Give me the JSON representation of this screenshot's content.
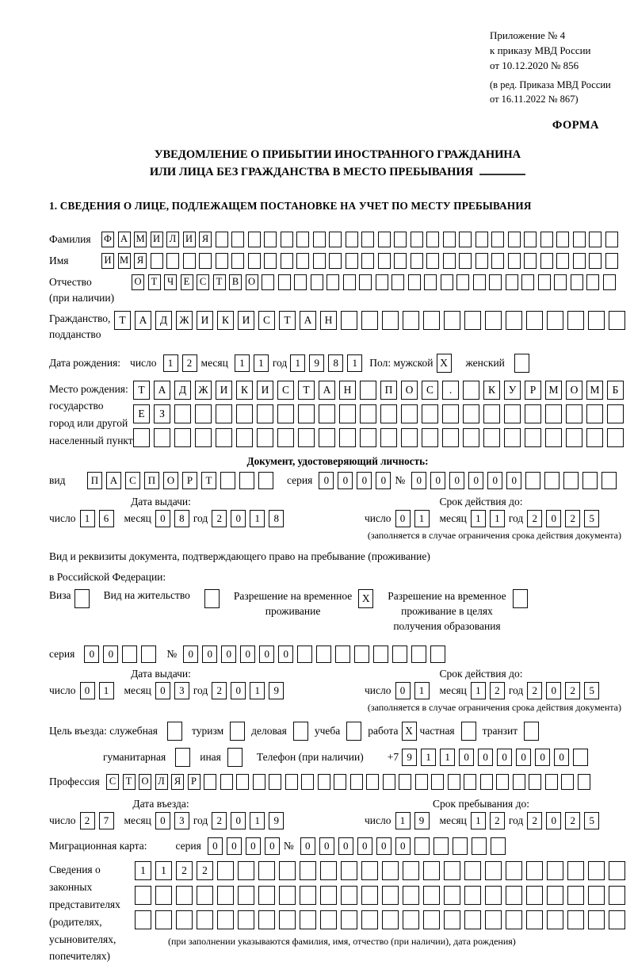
{
  "header": {
    "appendix": [
      "Приложение № 4",
      "к приказу МВД России",
      "от 10.12.2020 № 856"
    ],
    "edition": [
      "(в ред. Приказа МВД России",
      "от 16.11.2022 № 867)"
    ],
    "form_label": "ФОРМА"
  },
  "title": {
    "line1": "УВЕДОМЛЕНИЕ О ПРИБЫТИИ ИНОСТРАННОГО ГРАЖДАНИНА",
    "line2": "ИЛИ ЛИЦА БЕЗ ГРАЖДАНСТВА В МЕСТО ПРЕБЫВАНИЯ"
  },
  "section1_heading": "1. СВЕДЕНИЯ О ЛИЦЕ, ПОДЛЕЖАЩЕМ ПОСТАНОВКЕ НА УЧЕТ ПО МЕСТУ ПРЕБЫВАНИЯ",
  "labels": {
    "surname": "Фамилия",
    "given_name": "Имя",
    "patronymic": "Отчество",
    "patronymic_note": "(при наличии)",
    "citizenship1": "Гражданство,",
    "citizenship2": "подданство",
    "birthdate": "Дата рождения:",
    "day": "число",
    "month": "месяц",
    "year": "год",
    "sex_male": "Пол: мужской",
    "sex_female": "женский",
    "birthplace": [
      "Место рождения:",
      "государство",
      "город или другой",
      "населенный пункт"
    ],
    "identity_doc_heading": "Документ, удостоверяющий личность:",
    "vid": "вид",
    "series": "серия",
    "number": "№",
    "issue_date": "Дата выдачи:",
    "valid_until": "Срок действия до:",
    "restriction_note": "(заполняется в случае ограничения срока действия документа)",
    "right_doc_line1": "Вид и реквизиты документа, подтверждающего право на пребывание (проживание)",
    "right_doc_line2": "в Российской Федерации:",
    "visa": "Виза",
    "residence_permit": "Вид на жительство",
    "temp_residence": [
      "Разрешение на временное",
      "проживание"
    ],
    "temp_residence_edu": [
      "Разрешение на временное",
      "проживание в целях",
      "получения образования"
    ],
    "purpose": "Цель въезда: служебная",
    "tourism": "туризм",
    "business": "деловая",
    "study": "учеба",
    "work": "работа",
    "private": "частная",
    "transit": "транзит",
    "humanitarian": "гуманитарная",
    "other": "иная",
    "phone": "Телефон (при наличии)",
    "phone_prefix": "+7",
    "profession": "Профессия",
    "entry_date": "Дата въезда:",
    "stay_until": "Срок пребывания до:",
    "migration_card": "Миграционная карта:",
    "guardians": [
      "Сведения о",
      "законных",
      "представителях",
      "(родителях,",
      "усыновителях,",
      "попечителях)"
    ],
    "guardians_note": "(при заполнении указываются фамилия, имя, отчество (при наличии), дата рождения)"
  },
  "fields": {
    "surname": {
      "count": 32,
      "value": "ФАМИЛИЯ"
    },
    "given_name": {
      "count": 32,
      "value": "ИМЯ"
    },
    "patronymic": {
      "count": 30,
      "value": "ОТЧЕСТВО"
    },
    "citizenship": {
      "count": 25,
      "value": "ТАДЖИКИСТАН"
    },
    "birth_day": {
      "count": 2,
      "value": "12"
    },
    "birth_month": {
      "count": 2,
      "value": "11"
    },
    "birth_year": {
      "count": 4,
      "value": "1981"
    },
    "sex_male_box": {
      "count": 1,
      "value": "X"
    },
    "sex_female_box": {
      "count": 1,
      "value": ""
    },
    "birthplace_row1": {
      "count": 24,
      "value": "ТАДЖИКИСТАН ПОС. КУРМОМБ"
    },
    "birthplace_row2": {
      "count": 24,
      "value": "ЕЗ"
    },
    "birthplace_row3": {
      "count": 24,
      "value": ""
    },
    "doc_type": {
      "count": 10,
      "value": "ПАСПОРТ"
    },
    "doc_series": {
      "count": 4,
      "value": "0000"
    },
    "doc_number": {
      "count": 11,
      "value": "000000"
    },
    "doc_issue_day": {
      "count": 2,
      "value": "16"
    },
    "doc_issue_month": {
      "count": 2,
      "value": "08"
    },
    "doc_issue_year": {
      "count": 4,
      "value": "2018"
    },
    "doc_valid_day": {
      "count": 2,
      "value": "01"
    },
    "doc_valid_month": {
      "count": 2,
      "value": "11"
    },
    "doc_valid_year": {
      "count": 4,
      "value": "2025"
    },
    "visa_box": {
      "count": 1,
      "value": ""
    },
    "residence_permit_box": {
      "count": 1,
      "value": ""
    },
    "temp_residence_box": {
      "count": 1,
      "value": "X"
    },
    "temp_residence_edu_box": {
      "count": 1,
      "value": ""
    },
    "permit_series": {
      "count": 4,
      "value": "00"
    },
    "permit_number": {
      "count": 14,
      "value": "000000"
    },
    "permit_issue_day": {
      "count": 2,
      "value": "01"
    },
    "permit_issue_month": {
      "count": 2,
      "value": "03"
    },
    "permit_issue_year": {
      "count": 4,
      "value": "2019"
    },
    "permit_valid_day": {
      "count": 2,
      "value": "01"
    },
    "permit_valid_month": {
      "count": 2,
      "value": "12"
    },
    "permit_valid_year": {
      "count": 4,
      "value": "2025"
    },
    "purpose_official_box": {
      "count": 1,
      "value": ""
    },
    "purpose_tourism_box": {
      "count": 1,
      "value": ""
    },
    "purpose_business_box": {
      "count": 1,
      "value": ""
    },
    "purpose_study_box": {
      "count": 1,
      "value": ""
    },
    "purpose_work_box": {
      "count": 1,
      "value": "X"
    },
    "purpose_private_box": {
      "count": 1,
      "value": ""
    },
    "purpose_transit_box": {
      "count": 1,
      "value": ""
    },
    "purpose_humanitarian_box": {
      "count": 1,
      "value": ""
    },
    "purpose_other_box": {
      "count": 1,
      "value": ""
    },
    "phone": {
      "count": 10,
      "value": "911000000"
    },
    "profession": {
      "count": 30,
      "value": "СТОЛЯР"
    },
    "entry_day": {
      "count": 2,
      "value": "27"
    },
    "entry_month": {
      "count": 2,
      "value": "03"
    },
    "entry_year": {
      "count": 4,
      "value": "2019"
    },
    "stay_day": {
      "count": 2,
      "value": "19"
    },
    "stay_month": {
      "count": 2,
      "value": "12"
    },
    "stay_year": {
      "count": 4,
      "value": "2025"
    },
    "migration_series": {
      "count": 4,
      "value": "0000"
    },
    "migration_number": {
      "count": 11,
      "value": "000000"
    },
    "guardians_row1": {
      "count": 24,
      "value": "1122"
    },
    "guardians_row2": {
      "count": 24,
      "value": ""
    },
    "guardians_row3": {
      "count": 24,
      "value": ""
    }
  }
}
